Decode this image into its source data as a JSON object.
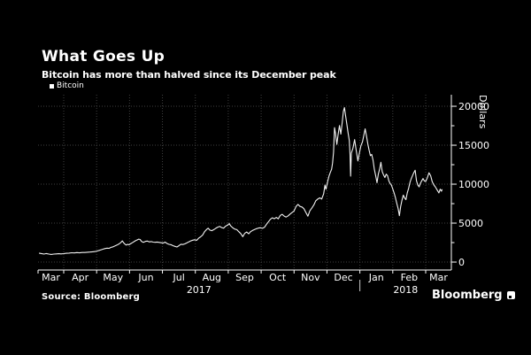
{
  "header": {
    "title": "What Goes Up",
    "subtitle": "Bitcoin has more than halved since its December peak"
  },
  "legend": {
    "items": [
      {
        "label": "Bitcoin",
        "marker_color": "#ffffff"
      }
    ]
  },
  "footer": {
    "source": "Source: Bloomberg",
    "brand": "Bloomberg"
  },
  "colors": {
    "background": "#000000",
    "text": "#ffffff",
    "grid": "#404040",
    "axis": "#ffffff",
    "line": "#f2f2f2",
    "year_separator": "#cccccc"
  },
  "chart_data": {
    "type": "line",
    "title": "What Goes Up",
    "subtitle": "Bitcoin has more than halved since its December peak",
    "ylabel": "Dollars",
    "xlabel": "",
    "x_unit": "months_since_2017-03-01",
    "xlim": [
      0.22,
      12.78
    ],
    "ylim": [
      -1020,
      21480
    ],
    "yticks_major": [
      0,
      5000,
      10000,
      15000,
      20000
    ],
    "ytick_minor_step": 2500,
    "month_boundaries": [
      1,
      2,
      3,
      4,
      5,
      6,
      7,
      8,
      9,
      10,
      11,
      12
    ],
    "month_labels": [
      "Mar",
      "Apr",
      "May",
      "Jun",
      "Jul",
      "Aug",
      "Sep",
      "Oct",
      "Nov",
      "Dec",
      "Jan",
      "Feb",
      "Mar"
    ],
    "year_labels": [
      {
        "label": "2017",
        "span": [
          0.22,
          10
        ]
      },
      {
        "label": "2018",
        "span": [
          10,
          12.78
        ]
      }
    ],
    "year_separator_x": 10,
    "grid_style": "dotted",
    "legend_position": "top-left",
    "series": [
      {
        "name": "Bitcoin",
        "color": "#f2f2f2",
        "points": [
          [
            0.25,
            1150
          ],
          [
            0.32,
            1090
          ],
          [
            0.4,
            1030
          ],
          [
            0.47,
            1090
          ],
          [
            0.55,
            1030
          ],
          [
            0.62,
            980
          ],
          [
            0.7,
            1020
          ],
          [
            0.78,
            1045
          ],
          [
            0.85,
            1075
          ],
          [
            0.92,
            1050
          ],
          [
            1.0,
            1085
          ],
          [
            1.08,
            1130
          ],
          [
            1.16,
            1155
          ],
          [
            1.24,
            1195
          ],
          [
            1.32,
            1175
          ],
          [
            1.4,
            1215
          ],
          [
            1.48,
            1190
          ],
          [
            1.56,
            1235
          ],
          [
            1.64,
            1225
          ],
          [
            1.72,
            1260
          ],
          [
            1.8,
            1290
          ],
          [
            1.88,
            1320
          ],
          [
            1.96,
            1350
          ],
          [
            2.02,
            1420
          ],
          [
            2.08,
            1500
          ],
          [
            2.14,
            1580
          ],
          [
            2.2,
            1660
          ],
          [
            2.26,
            1740
          ],
          [
            2.32,
            1790
          ],
          [
            2.38,
            1760
          ],
          [
            2.44,
            1890
          ],
          [
            2.5,
            1960
          ],
          [
            2.56,
            2070
          ],
          [
            2.62,
            2190
          ],
          [
            2.68,
            2330
          ],
          [
            2.74,
            2520
          ],
          [
            2.78,
            2720
          ],
          [
            2.82,
            2480
          ],
          [
            2.86,
            2300
          ],
          [
            2.9,
            2190
          ],
          [
            2.94,
            2280
          ],
          [
            2.98,
            2220
          ],
          [
            3.04,
            2380
          ],
          [
            3.1,
            2520
          ],
          [
            3.16,
            2680
          ],
          [
            3.22,
            2820
          ],
          [
            3.28,
            2950
          ],
          [
            3.32,
            2900
          ],
          [
            3.36,
            2660
          ],
          [
            3.42,
            2540
          ],
          [
            3.48,
            2650
          ],
          [
            3.54,
            2700
          ],
          [
            3.6,
            2590
          ],
          [
            3.66,
            2630
          ],
          [
            3.72,
            2560
          ],
          [
            3.78,
            2540
          ],
          [
            3.84,
            2570
          ],
          [
            3.9,
            2520
          ],
          [
            3.96,
            2480
          ],
          [
            4.02,
            2430
          ],
          [
            4.08,
            2560
          ],
          [
            4.14,
            2380
          ],
          [
            4.2,
            2270
          ],
          [
            4.26,
            2230
          ],
          [
            4.32,
            2110
          ],
          [
            4.38,
            2010
          ],
          [
            4.44,
            1930
          ],
          [
            4.5,
            2090
          ],
          [
            4.56,
            2290
          ],
          [
            4.62,
            2250
          ],
          [
            4.68,
            2330
          ],
          [
            4.74,
            2460
          ],
          [
            4.8,
            2590
          ],
          [
            4.86,
            2720
          ],
          [
            4.92,
            2810
          ],
          [
            4.98,
            2870
          ],
          [
            5.04,
            2790
          ],
          [
            5.1,
            3060
          ],
          [
            5.16,
            3240
          ],
          [
            5.22,
            3460
          ],
          [
            5.28,
            3890
          ],
          [
            5.34,
            4190
          ],
          [
            5.39,
            4340
          ],
          [
            5.44,
            4110
          ],
          [
            5.5,
            4020
          ],
          [
            5.56,
            4160
          ],
          [
            5.62,
            4330
          ],
          [
            5.68,
            4480
          ],
          [
            5.74,
            4580
          ],
          [
            5.8,
            4420
          ],
          [
            5.86,
            4360
          ],
          [
            5.92,
            4610
          ],
          [
            5.98,
            4740
          ],
          [
            6.03,
            4930
          ],
          [
            6.08,
            4620
          ],
          [
            6.14,
            4390
          ],
          [
            6.2,
            4230
          ],
          [
            6.26,
            4160
          ],
          [
            6.32,
            3900
          ],
          [
            6.38,
            3660
          ],
          [
            6.44,
            3260
          ],
          [
            6.5,
            3690
          ],
          [
            6.56,
            3860
          ],
          [
            6.62,
            3630
          ],
          [
            6.68,
            3910
          ],
          [
            6.74,
            4060
          ],
          [
            6.8,
            4180
          ],
          [
            6.86,
            4290
          ],
          [
            6.92,
            4370
          ],
          [
            6.98,
            4400
          ],
          [
            7.04,
            4330
          ],
          [
            7.1,
            4460
          ],
          [
            7.16,
            4820
          ],
          [
            7.22,
            5160
          ],
          [
            7.28,
            5490
          ],
          [
            7.34,
            5690
          ],
          [
            7.4,
            5560
          ],
          [
            7.46,
            5730
          ],
          [
            7.52,
            5550
          ],
          [
            7.58,
            5990
          ],
          [
            7.64,
            6130
          ],
          [
            7.7,
            5900
          ],
          [
            7.76,
            5770
          ],
          [
            7.82,
            5930
          ],
          [
            7.88,
            6160
          ],
          [
            7.94,
            6350
          ],
          [
            8.0,
            6560
          ],
          [
            8.06,
            7130
          ],
          [
            8.12,
            7400
          ],
          [
            8.18,
            7140
          ],
          [
            8.24,
            7070
          ],
          [
            8.3,
            6860
          ],
          [
            8.36,
            6360
          ],
          [
            8.42,
            5890
          ],
          [
            8.48,
            6570
          ],
          [
            8.54,
            6950
          ],
          [
            8.6,
            7320
          ],
          [
            8.66,
            7870
          ],
          [
            8.72,
            8080
          ],
          [
            8.78,
            8240
          ],
          [
            8.84,
            8090
          ],
          [
            8.9,
            8760
          ],
          [
            8.94,
            9880
          ],
          [
            8.97,
            9350
          ],
          [
            9.02,
            10320
          ],
          [
            9.06,
            11010
          ],
          [
            9.1,
            11500
          ],
          [
            9.14,
            11910
          ],
          [
            9.17,
            12720
          ],
          [
            9.2,
            14120
          ],
          [
            9.23,
            17250
          ],
          [
            9.26,
            16520
          ],
          [
            9.3,
            15110
          ],
          [
            9.34,
            16420
          ],
          [
            9.38,
            17520
          ],
          [
            9.42,
            16420
          ],
          [
            9.46,
            17830
          ],
          [
            9.5,
            19340
          ],
          [
            9.53,
            19830
          ],
          [
            9.56,
            18940
          ],
          [
            9.6,
            17790
          ],
          [
            9.64,
            16590
          ],
          [
            9.68,
            15590
          ],
          [
            9.7,
            13860
          ],
          [
            9.72,
            11020
          ],
          [
            9.74,
            13990
          ],
          [
            9.79,
            14610
          ],
          [
            9.84,
            15720
          ],
          [
            9.89,
            14340
          ],
          [
            9.94,
            12980
          ],
          [
            9.98,
            13890
          ],
          [
            10.03,
            14920
          ],
          [
            10.08,
            15440
          ],
          [
            10.12,
            16270
          ],
          [
            10.16,
            17090
          ],
          [
            10.2,
            16190
          ],
          [
            10.24,
            15170
          ],
          [
            10.28,
            14390
          ],
          [
            10.32,
            13660
          ],
          [
            10.36,
            13820
          ],
          [
            10.4,
            13080
          ],
          [
            10.44,
            11890
          ],
          [
            10.48,
            11080
          ],
          [
            10.52,
            10190
          ],
          [
            10.56,
            11310
          ],
          [
            10.6,
            11900
          ],
          [
            10.64,
            12810
          ],
          [
            10.68,
            11610
          ],
          [
            10.72,
            11190
          ],
          [
            10.76,
            10860
          ],
          [
            10.8,
            11290
          ],
          [
            10.84,
            11080
          ],
          [
            10.88,
            10410
          ],
          [
            10.92,
            10090
          ],
          [
            10.96,
            9870
          ],
          [
            11.0,
            9390
          ],
          [
            11.04,
            8880
          ],
          [
            11.08,
            8270
          ],
          [
            11.12,
            7560
          ],
          [
            11.16,
            6890
          ],
          [
            11.2,
            5960
          ],
          [
            11.24,
            7120
          ],
          [
            11.28,
            7940
          ],
          [
            11.32,
            8590
          ],
          [
            11.36,
            8230
          ],
          [
            11.4,
            8010
          ],
          [
            11.44,
            8890
          ],
          [
            11.48,
            9460
          ],
          [
            11.52,
            10210
          ],
          [
            11.56,
            10690
          ],
          [
            11.6,
            11090
          ],
          [
            11.64,
            11480
          ],
          [
            11.68,
            11790
          ],
          [
            11.72,
            10430
          ],
          [
            11.76,
            9890
          ],
          [
            11.8,
            9660
          ],
          [
            11.84,
            10090
          ],
          [
            11.88,
            10420
          ],
          [
            11.92,
            10720
          ],
          [
            11.96,
            10410
          ],
          [
            12.0,
            10340
          ],
          [
            12.05,
            10820
          ],
          [
            12.1,
            11460
          ],
          [
            12.15,
            11090
          ],
          [
            12.2,
            10310
          ],
          [
            12.25,
            9890
          ],
          [
            12.3,
            9590
          ],
          [
            12.35,
            9240
          ],
          [
            12.4,
            8880
          ],
          [
            12.44,
            9360
          ],
          [
            12.48,
            9090
          ],
          [
            12.5,
            9340
          ]
        ]
      }
    ]
  }
}
